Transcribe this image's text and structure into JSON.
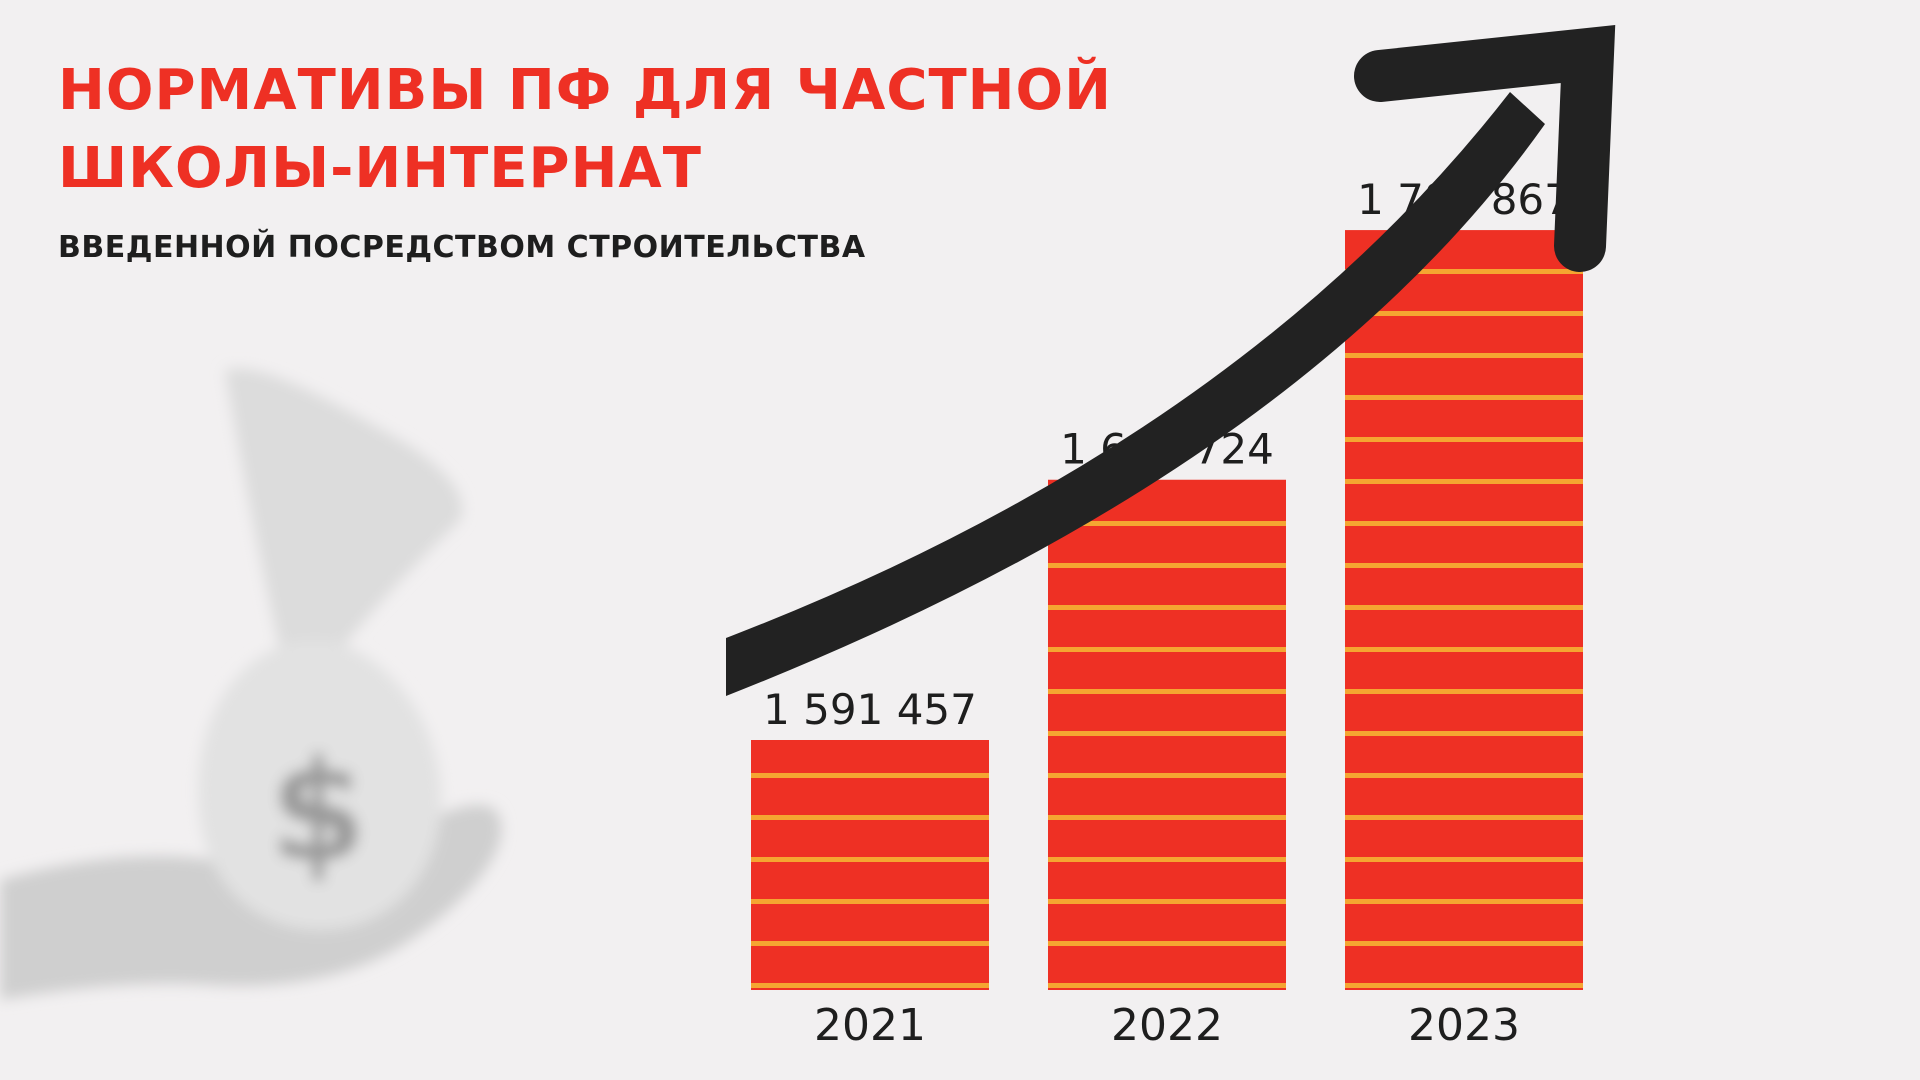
{
  "title": {
    "line1": "НОРМАТИВЫ ПФ ДЛЯ ЧАСТНОЙ",
    "line2": "ШКОЛЫ-ИНТЕРНАТ"
  },
  "subtitle": "ВВЕДЕННОЙ ПОСРЕДСТВОМ СТРОИТЕЛЬСТВА",
  "decor": {
    "currency_symbol": "$"
  },
  "colors": {
    "accent": "#ee3024",
    "stripe": "#f5a531",
    "arrow": "#222222",
    "text": "#1e1e1e",
    "background": "#f2f0f1"
  },
  "chart_data": {
    "type": "bar",
    "categories": [
      "2021",
      "2022",
      "2023"
    ],
    "values": [
      1591457,
      1692724,
      1789867
    ],
    "value_labels": [
      "1 591 457",
      "1 692 724",
      "1 789 867"
    ],
    "title": "НОРМАТИВЫ ПФ ДЛЯ ЧАСТНОЙ ШКОЛЫ-ИНТЕРНАТ",
    "subtitle": "ВВЕДЕННОЙ ПОСРЕДСТВОМ СТРОИТЕЛЬСТВА",
    "xlabel": "",
    "ylabel": "",
    "grid": false,
    "legend": "none"
  }
}
